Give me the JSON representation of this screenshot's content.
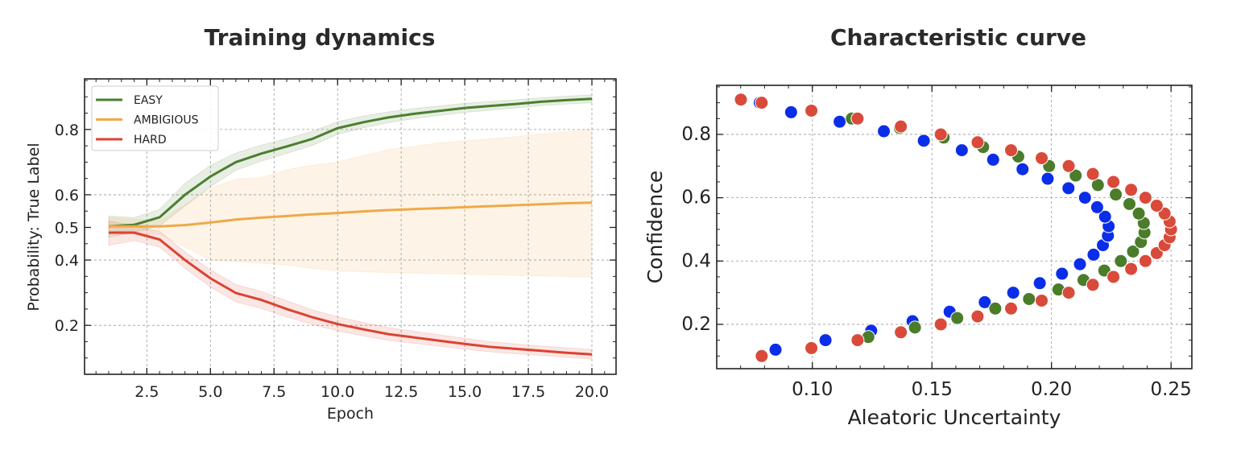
{
  "chart_data": [
    {
      "type": "line",
      "title": "Training dynamics",
      "xlabel": "Epoch",
      "ylabel": "Probability: True Label",
      "xlim": [
        0.05,
        20.95
      ],
      "ylim": [
        0.05,
        0.955
      ],
      "xticks": [
        2.5,
        5.0,
        7.5,
        10.0,
        12.5,
        15.0,
        17.5,
        20.0
      ],
      "xtick_labels": [
        "2.5",
        "5.0",
        "7.5",
        "10.0",
        "12.5",
        "15.0",
        "17.5",
        "20.0"
      ],
      "yticks": [
        0.2,
        0.4,
        0.5,
        0.6,
        0.8
      ],
      "ytick_labels": [
        "0.2",
        "0.4",
        "0.5",
        "0.6",
        "0.8"
      ],
      "grid_y": [
        0.2,
        0.4,
        0.6,
        0.8
      ],
      "grid": true,
      "legend_position": "top-left",
      "x": [
        1,
        2,
        3,
        4,
        5,
        6,
        7,
        8,
        9,
        10,
        11,
        12,
        13,
        14,
        15,
        16,
        17,
        18,
        19,
        20
      ],
      "series": [
        {
          "name": "EASY",
          "color": "#4a7f2f",
          "values": [
            0.503,
            0.508,
            0.531,
            0.6,
            0.656,
            0.7,
            0.726,
            0.748,
            0.771,
            0.804,
            0.822,
            0.837,
            0.848,
            0.857,
            0.866,
            0.872,
            0.878,
            0.885,
            0.89,
            0.894
          ],
          "lower": [
            0.47,
            0.485,
            0.505,
            0.565,
            0.625,
            0.675,
            0.703,
            0.727,
            0.751,
            0.785,
            0.805,
            0.821,
            0.833,
            0.843,
            0.852,
            0.859,
            0.866,
            0.873,
            0.878,
            0.882
          ],
          "upper": [
            0.535,
            0.53,
            0.555,
            0.635,
            0.69,
            0.728,
            0.752,
            0.772,
            0.794,
            0.824,
            0.841,
            0.854,
            0.864,
            0.872,
            0.88,
            0.886,
            0.891,
            0.897,
            0.902,
            0.906
          ]
        },
        {
          "name": "AMBIGIOUS",
          "color": "#f0a848",
          "values": [
            0.503,
            0.503,
            0.503,
            0.507,
            0.515,
            0.524,
            0.53,
            0.535,
            0.54,
            0.544,
            0.549,
            0.553,
            0.556,
            0.559,
            0.562,
            0.565,
            0.568,
            0.571,
            0.574,
            0.576
          ],
          "lower": [
            0.48,
            0.48,
            0.48,
            0.44,
            0.4,
            0.395,
            0.39,
            0.385,
            0.375,
            0.367,
            0.364,
            0.362,
            0.36,
            0.358,
            0.357,
            0.355,
            0.353,
            0.351,
            0.35,
            0.348
          ],
          "upper": [
            0.53,
            0.525,
            0.52,
            0.57,
            0.62,
            0.648,
            0.652,
            0.677,
            0.69,
            0.7,
            0.72,
            0.738,
            0.748,
            0.759,
            0.765,
            0.771,
            0.778,
            0.786,
            0.793,
            0.8
          ]
        },
        {
          "name": "HARD",
          "color": "#dc4232",
          "values": [
            0.484,
            0.484,
            0.463,
            0.4,
            0.344,
            0.299,
            0.278,
            0.25,
            0.225,
            0.204,
            0.188,
            0.173,
            0.163,
            0.153,
            0.143,
            0.134,
            0.128,
            0.122,
            0.116,
            0.111
          ],
          "lower": [
            0.445,
            0.46,
            0.44,
            0.375,
            0.318,
            0.272,
            0.252,
            0.226,
            0.203,
            0.183,
            0.168,
            0.154,
            0.145,
            0.136,
            0.127,
            0.119,
            0.113,
            0.108,
            0.102,
            0.097
          ],
          "upper": [
            0.52,
            0.505,
            0.488,
            0.425,
            0.37,
            0.325,
            0.304,
            0.275,
            0.248,
            0.226,
            0.209,
            0.193,
            0.182,
            0.171,
            0.16,
            0.15,
            0.143,
            0.137,
            0.131,
            0.126
          ]
        }
      ]
    },
    {
      "type": "scatter",
      "title": "Characteristic curve",
      "xlabel": "Aleatoric Uncertainty",
      "ylabel": "Confidence",
      "xlim": [
        0.06,
        0.2587
      ],
      "ylim": [
        0.06,
        0.955
      ],
      "xticks": [
        0.1,
        0.15,
        0.2,
        0.25
      ],
      "xtick_labels": [
        "0.10",
        "0.15",
        "0.20",
        "0.25"
      ],
      "yticks": [
        0.2,
        0.4,
        0.6,
        0.8
      ],
      "ytick_labels": [
        "0.2",
        "0.4",
        "0.6",
        "0.8"
      ],
      "grid": true,
      "series": [
        {
          "name": "blue",
          "color": "#0a2ee8",
          "points": [
            [
              0.0846,
              0.12
            ],
            [
              0.1055,
              0.15
            ],
            [
              0.1246,
              0.18
            ],
            [
              0.1419,
              0.21
            ],
            [
              0.1574,
              0.24
            ],
            [
              0.1721,
              0.27
            ],
            [
              0.184,
              0.3
            ],
            [
              0.1951,
              0.33
            ],
            [
              0.2044,
              0.36
            ],
            [
              0.2119,
              0.39
            ],
            [
              0.2176,
              0.42
            ],
            [
              0.2215,
              0.45
            ],
            [
              0.2236,
              0.48
            ],
            [
              0.2239,
              0.51
            ],
            [
              0.2224,
              0.54
            ],
            [
              0.2191,
              0.57
            ],
            [
              0.214,
              0.6
            ],
            [
              0.2071,
              0.63
            ],
            [
              0.1984,
              0.66
            ],
            [
              0.1879,
              0.69
            ],
            [
              0.1756,
              0.72
            ],
            [
              0.1625,
              0.75
            ],
            [
              0.1466,
              0.78
            ],
            [
              0.1299,
              0.81
            ],
            [
              0.1114,
              0.84
            ],
            [
              0.0911,
              0.87
            ],
            [
              0.078,
              0.9
            ]
          ]
        },
        {
          "name": "green",
          "color": "#4a7c2a",
          "points": [
            [
              0.1234,
              0.16
            ],
            [
              0.1429,
              0.19
            ],
            [
              0.1606,
              0.22
            ],
            [
              0.1765,
              0.25
            ],
            [
              0.1906,
              0.28
            ],
            [
              0.2029,
              0.31
            ],
            [
              0.2134,
              0.34
            ],
            [
              0.2221,
              0.37
            ],
            [
              0.229,
              0.4
            ],
            [
              0.2341,
              0.43
            ],
            [
              0.2374,
              0.46
            ],
            [
              0.2389,
              0.49
            ],
            [
              0.2386,
              0.52
            ],
            [
              0.2365,
              0.55
            ],
            [
              0.2326,
              0.58
            ],
            [
              0.2269,
              0.61
            ],
            [
              0.2194,
              0.64
            ],
            [
              0.2101,
              0.67
            ],
            [
              0.199,
              0.7
            ],
            [
              0.1861,
              0.73
            ],
            [
              0.1714,
              0.76
            ],
            [
              0.1549,
              0.79
            ],
            [
              0.1366,
              0.82
            ],
            [
              0.1165,
              0.85
            ]
          ]
        },
        {
          "name": "red",
          "color": "#d94a3a",
          "points": [
            [
              0.0788,
              0.1
            ],
            [
              0.0996,
              0.125
            ],
            [
              0.1189,
              0.15
            ],
            [
              0.137,
              0.175
            ],
            [
              0.1537,
              0.2
            ],
            [
              0.1691,
              0.225
            ],
            [
              0.1831,
              0.25
            ],
            [
              0.1959,
              0.275
            ],
            [
              0.2072,
              0.3
            ],
            [
              0.2173,
              0.325
            ],
            [
              0.2259,
              0.35
            ],
            [
              0.2333,
              0.375
            ],
            [
              0.2393,
              0.4
            ],
            [
              0.244,
              0.425
            ],
            [
              0.2473,
              0.45
            ],
            [
              0.2494,
              0.475
            ],
            [
              0.25,
              0.5
            ],
            [
              0.2494,
              0.525
            ],
            [
              0.2473,
              0.55
            ],
            [
              0.244,
              0.575
            ],
            [
              0.2393,
              0.6
            ],
            [
              0.2333,
              0.625
            ],
            [
              0.2259,
              0.65
            ],
            [
              0.2173,
              0.675
            ],
            [
              0.2072,
              0.7
            ],
            [
              0.1959,
              0.725
            ],
            [
              0.1831,
              0.75
            ],
            [
              0.1691,
              0.775
            ],
            [
              0.1537,
              0.8
            ],
            [
              0.137,
              0.825
            ],
            [
              0.1189,
              0.85
            ],
            [
              0.0996,
              0.875
            ],
            [
              0.0788,
              0.9
            ],
            [
              0.0701,
              0.91
            ]
          ]
        }
      ]
    }
  ]
}
